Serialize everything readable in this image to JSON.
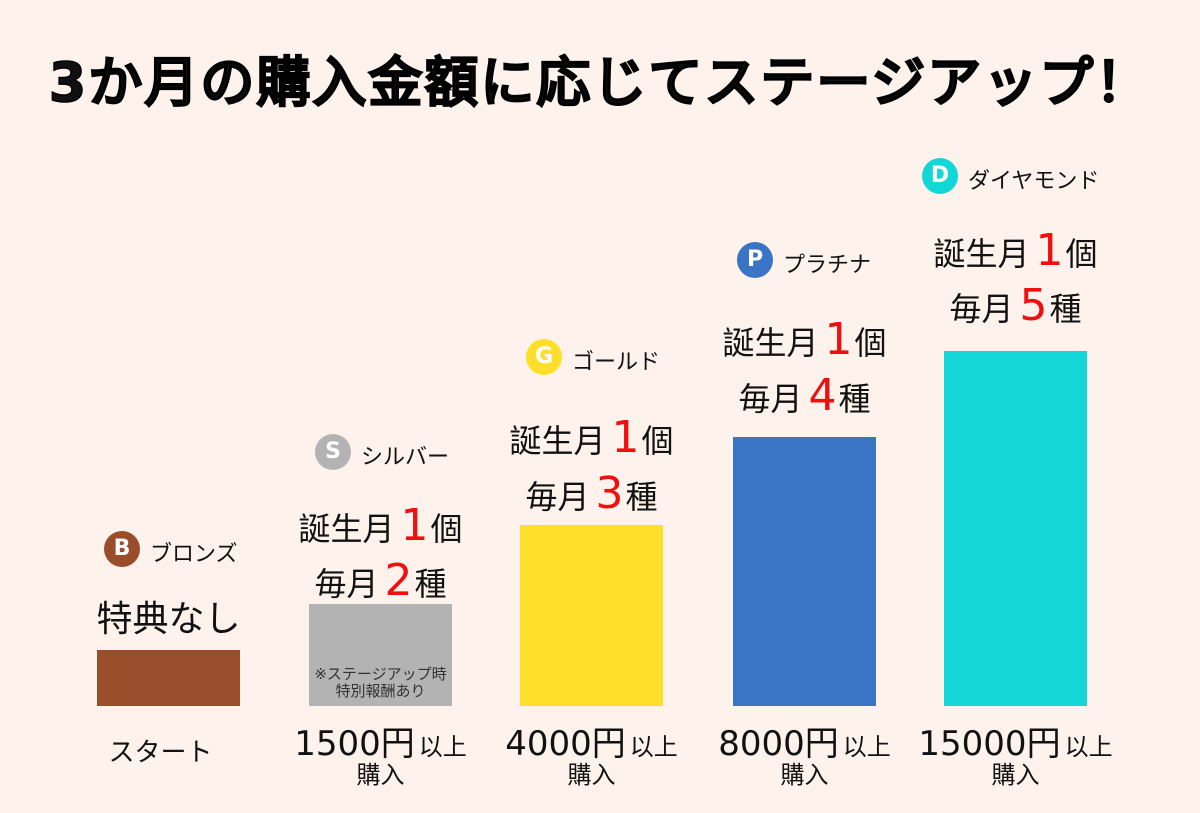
{
  "title": "3か月の購入金額に応じてステージアップ！",
  "chart_data": {
    "type": "bar",
    "title": "3か月の購入金額に応じてステージアップ！",
    "categories": [
      "ブロンズ",
      "シルバー",
      "ゴールド",
      "プラチナ",
      "ダイヤモンド"
    ],
    "values": [
      0,
      1500,
      4000,
      8000,
      15000
    ],
    "unit": "円"
  },
  "stages": [
    {
      "letter": "B",
      "name": "ブロンズ",
      "color": "#9a4d2a",
      "benefit_text": "特典なし",
      "bottom_text": "スタート"
    },
    {
      "letter": "S",
      "name": "シルバー",
      "color": "#b3b3b3",
      "birthday_label": "誕生月",
      "birthday_num": "1",
      "birthday_unit": "個",
      "monthly_label": "毎月",
      "monthly_num": "2",
      "monthly_unit": "種",
      "note_line1": "※ステージアップ時",
      "note_line2": "特別報酬あり",
      "amount": "1500円",
      "amount_suffix": "以上",
      "buy": "購入"
    },
    {
      "letter": "G",
      "name": "ゴールド",
      "color": "#ffdf2a",
      "birthday_label": "誕生月",
      "birthday_num": "1",
      "birthday_unit": "個",
      "monthly_label": "毎月",
      "monthly_num": "3",
      "monthly_unit": "種",
      "amount": "4000円",
      "amount_suffix": "以上",
      "buy": "購入"
    },
    {
      "letter": "P",
      "name": "プラチナ",
      "color": "#3a74c4",
      "birthday_label": "誕生月",
      "birthday_num": "1",
      "birthday_unit": "個",
      "monthly_label": "毎月",
      "monthly_num": "4",
      "monthly_unit": "種",
      "amount": "8000円",
      "amount_suffix": "以上",
      "buy": "購入"
    },
    {
      "letter": "D",
      "name": "ダイヤモンド",
      "color": "#13d6d6",
      "birthday_label": "誕生月",
      "birthday_num": "1",
      "birthday_unit": "個",
      "monthly_label": "毎月",
      "monthly_num": "5",
      "monthly_unit": "種",
      "amount": "15000円",
      "amount_suffix": "以上",
      "buy": "購入"
    }
  ]
}
